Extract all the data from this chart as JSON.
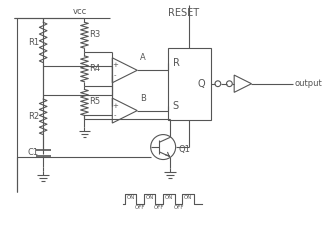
{
  "bg_color": "#ffffff",
  "line_color": "#555555",
  "vcc_label": "vcc",
  "reset_label": "RESET",
  "output_label": "output",
  "comp_a_label": "A",
  "comp_b_label": "B",
  "r1_label": "R1",
  "r2_label": "R2",
  "r3_label": "R3",
  "r4_label": "R4",
  "r5_label": "R5",
  "c1_label": "C1",
  "q1_label": "Q1",
  "sr_r_label": "R",
  "sr_s_label": "S",
  "sr_q_label": "Q",
  "on_label": "ON",
  "off_label": "OFF"
}
